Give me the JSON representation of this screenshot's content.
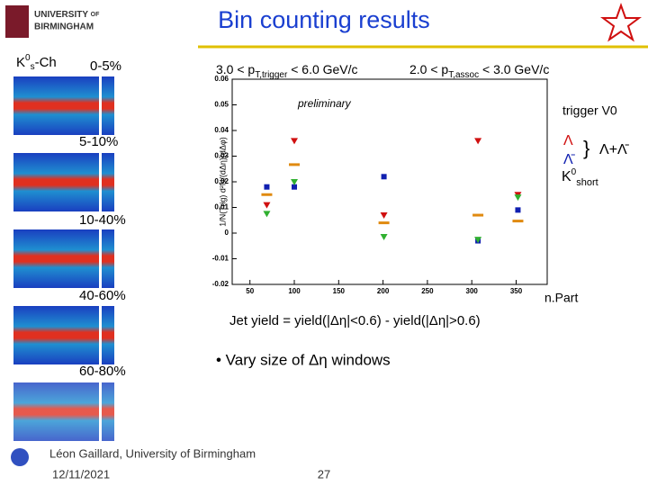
{
  "header": {
    "university": [
      "UNIVERSITY",
      "OF",
      "BIRMINGHAM"
    ],
    "title": "Bin counting results"
  },
  "panels": {
    "particle": [
      "K",
      "0",
      "s",
      "-Ch"
    ],
    "centralities": [
      "0-5%",
      "5-10%",
      "10-40%",
      "40-60%",
      "60-80%"
    ]
  },
  "cuts": {
    "trigger": [
      "3.0 < p",
      "T,trigger",
      " < 6.0 GeV/c"
    ],
    "assoc": [
      "2.0 < p",
      "T,assoc",
      " < 3.0 GeV/c"
    ]
  },
  "labels": {
    "preliminary": "preliminary",
    "trigger_type": "trigger V0",
    "sum": "Λ+Λ̄",
    "k0": [
      "K",
      "0",
      "short"
    ]
  },
  "chart_data": {
    "type": "scatter",
    "xlabel": "n.Part",
    "ylabel": "1/N(Trig) d²N/(dΔη)(dΔφ)",
    "xlim": [
      30,
      385
    ],
    "xticks": [
      50,
      100,
      150,
      200,
      250,
      300,
      350
    ],
    "ylim": [
      -0.02,
      0.06
    ],
    "yticks": [
      -0.02,
      -0.01,
      0,
      0.01,
      0.02,
      0.03,
      0.04,
      0.05,
      0.06
    ],
    "x": [
      69,
      100,
      201,
      307,
      352
    ],
    "series": [
      {
        "name": "Λ",
        "color": "#d01010",
        "marker": "triangle",
        "values": [
          0.011,
          0.036,
          0.007,
          0.036,
          0.015
        ]
      },
      {
        "name": "Λ̄",
        "color": "#1020b0",
        "marker": "square",
        "values": [
          0.018,
          0.018,
          0.022,
          -0.003,
          0.009
        ]
      },
      {
        "name": "K0short",
        "color": "#30b030",
        "marker": "triangle",
        "values": [
          0.0076,
          0.02,
          -0.0014,
          -0.0025,
          0.014
        ]
      },
      {
        "name": "Λ+Λ̄",
        "color": "#e08a10",
        "marker": "dash",
        "values": [
          0.015,
          0.0267,
          0.004,
          0.007,
          0.0047
        ]
      }
    ]
  },
  "body": {
    "formula": "Jet yield = yield(|Δη|<0.6) - yield(|Δη|>0.6)",
    "bullet": "• Vary size of Δη windows"
  },
  "footer": {
    "author": "Léon Gaillard, University of Birmingham",
    "date": "12/11/2021",
    "page": "27"
  }
}
